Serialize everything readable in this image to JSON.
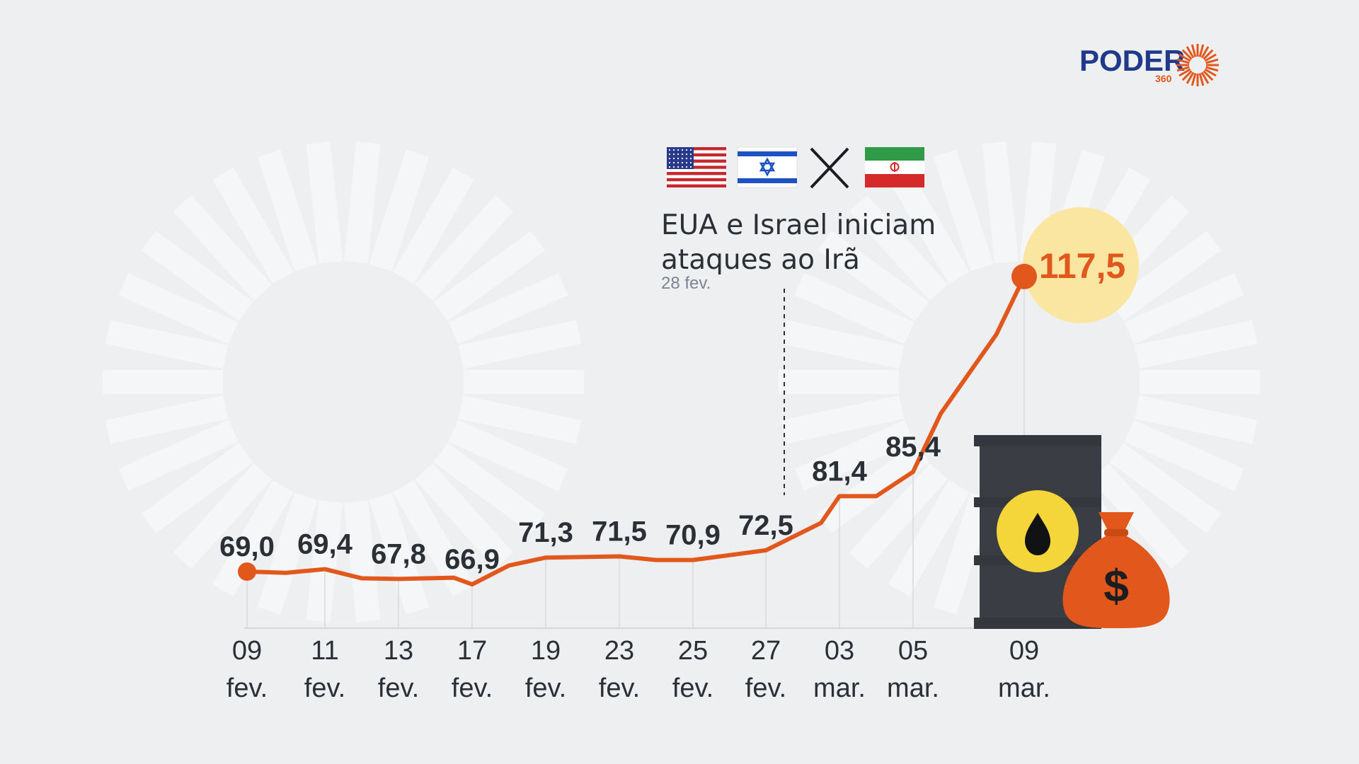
{
  "brand": {
    "name": "PODER",
    "sub": "360",
    "accent": "#e2571b",
    "navy": "#1f3a8a"
  },
  "colors": {
    "line": "#e2571b",
    "text": "#2b2f36",
    "muted": "#7a8492",
    "highlight_bubble": "#fae6a0",
    "barrel": "#3a3e44",
    "oil_circle": "#f4d63a",
    "money_bag": "#e2571b"
  },
  "annotation": {
    "line1": "EUA e Israel iniciam",
    "line2": "ataques ao Irã",
    "date": "28 fev.",
    "icons": [
      "us-flag-icon",
      "israel-flag-icon",
      "versus-x-icon",
      "iran-flag-icon"
    ]
  },
  "chart_data": {
    "type": "line",
    "series": [
      {
        "values": [
          69.0,
          68.8,
          69.4,
          67.9,
          67.8,
          68.0,
          66.9,
          70.0,
          71.3,
          71.5,
          70.9,
          70.9,
          72.5,
          77.0,
          81.4,
          81.4,
          85.4,
          95.0,
          108.0,
          117.5
        ],
        "x": [
          "09 fev.",
          "10 fev.",
          "11 fev.",
          "12 fev.",
          "13 fev.",
          "16 fev.",
          "17 fev.",
          "18 fev.",
          "19 fev.",
          "23 fev.",
          "24 fev.",
          "25 fev.",
          "27 fev.",
          "02 mar.",
          "03 mar.",
          "04 mar.",
          "05 mar.",
          "06 mar.",
          "08 mar.",
          "09 mar."
        ]
      }
    ],
    "labeled_points": [
      {
        "x": "09 fev.",
        "label": "69,0"
      },
      {
        "x": "11 fev.",
        "label": "69,4"
      },
      {
        "x": "13 fev.",
        "label": "67,8"
      },
      {
        "x": "17 fev.",
        "label": "66,9"
      },
      {
        "x": "19 fev.",
        "label": "71,3"
      },
      {
        "x": "23 fev.",
        "label": "71,5"
      },
      {
        "x": "25 fev.",
        "label": "70,9"
      },
      {
        "x": "27 fev.",
        "label": "72,5"
      },
      {
        "x": "03 mar.",
        "label": "81,4"
      },
      {
        "x": "05 mar.",
        "label": "85,4"
      }
    ],
    "highlight": {
      "x": "09 mar.",
      "label": "117,5"
    },
    "ticks": [
      {
        "x": "09 fev.",
        "day": "09",
        "month": "fev."
      },
      {
        "x": "11 fev.",
        "day": "11",
        "month": "fev."
      },
      {
        "x": "13 fev.",
        "day": "13",
        "month": "fev."
      },
      {
        "x": "17 fev.",
        "day": "17",
        "month": "fev."
      },
      {
        "x": "19 fev.",
        "day": "19",
        "month": "fev."
      },
      {
        "x": "23 fev.",
        "day": "23",
        "month": "fev."
      },
      {
        "x": "25 fev.",
        "day": "25",
        "month": "fev."
      },
      {
        "x": "27 fev.",
        "day": "27",
        "month": "fev."
      },
      {
        "x": "03 mar.",
        "day": "03",
        "month": "mar."
      },
      {
        "x": "05 mar.",
        "day": "05",
        "month": "mar."
      },
      {
        "x": "09 mar.",
        "day": "09",
        "month": "mar."
      }
    ],
    "event_marker": {
      "x": "28 fev."
    },
    "ylim": [
      60,
      120
    ],
    "grid": "vertical at labeled dates",
    "title": "",
    "xlabel": "",
    "ylabel": ""
  }
}
